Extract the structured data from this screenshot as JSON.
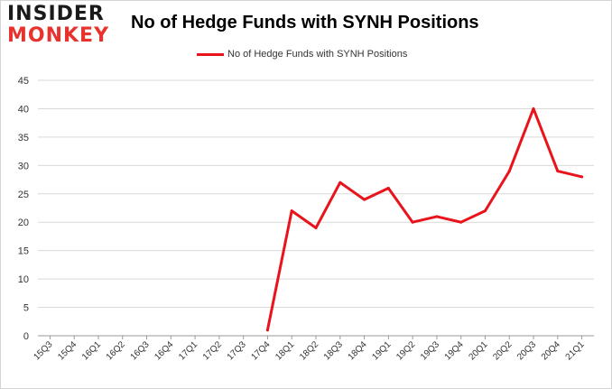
{
  "brand": {
    "line1": "INSIDER",
    "line2": "MONKEY"
  },
  "chart_data": {
    "type": "line",
    "title": "No of Hedge Funds with SYNH Positions",
    "xlabel": "",
    "ylabel": "",
    "categories": [
      "15Q3",
      "15Q4",
      "16Q1",
      "16Q2",
      "16Q3",
      "16Q4",
      "17Q1",
      "17Q2",
      "17Q3",
      "17Q4",
      "18Q1",
      "18Q2",
      "18Q3",
      "18Q4",
      "19Q1",
      "19Q2",
      "19Q3",
      "19Q4",
      "20Q1",
      "20Q2",
      "20Q3",
      "20Q4",
      "21Q1"
    ],
    "series": [
      {
        "name": "No of Hedge Funds with SYNH Positions",
        "color": "#e8131b",
        "values": [
          null,
          null,
          null,
          null,
          null,
          null,
          null,
          null,
          null,
          1,
          22,
          19,
          27,
          24,
          26,
          20,
          21,
          20,
          22,
          29,
          40,
          29,
          28
        ]
      }
    ],
    "ylim": [
      0,
      45
    ],
    "yticks": [
      0,
      5,
      10,
      15,
      20,
      25,
      30,
      35,
      40,
      45
    ],
    "grid": true,
    "legend_position": "top-center"
  }
}
